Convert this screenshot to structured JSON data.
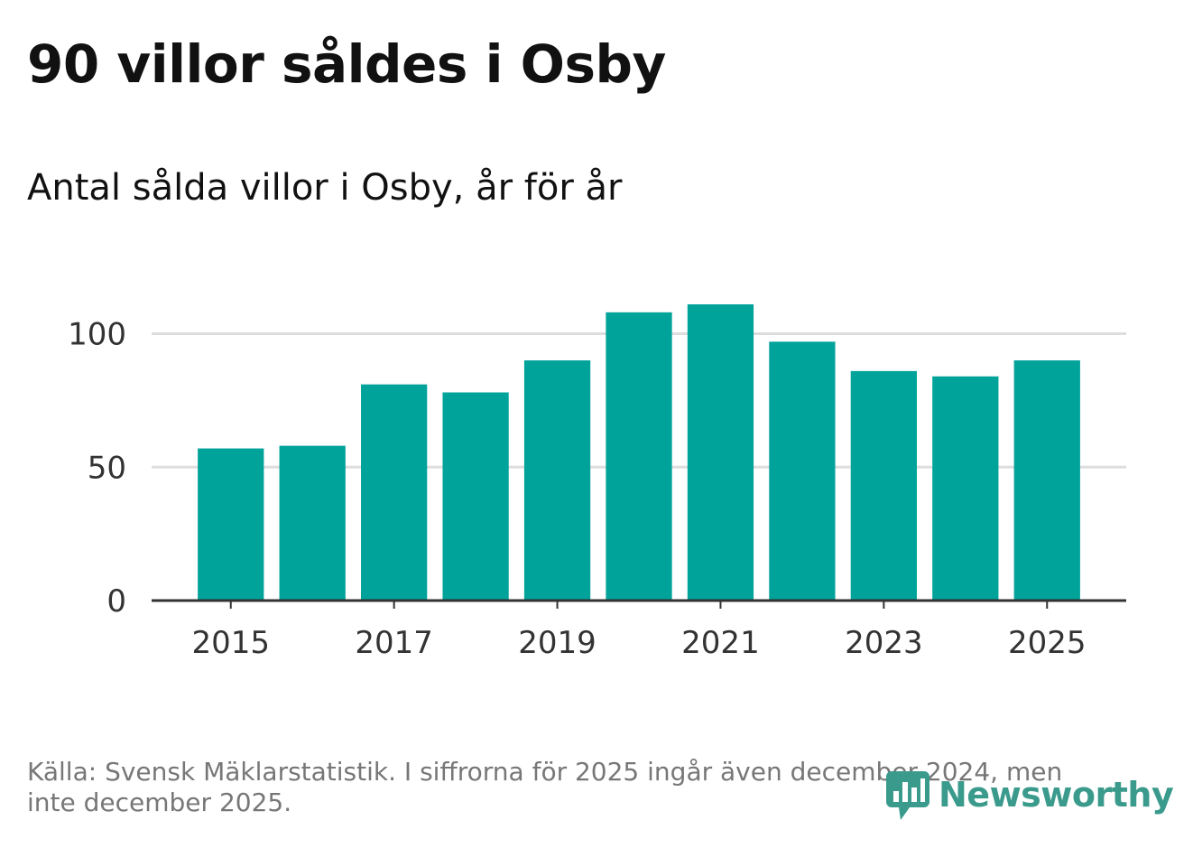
{
  "title": "90 villor såldes i Osby",
  "subtitle": "Antal sålda villor i Osby, år för år",
  "source": "Källa: Svensk Mäklarstatistik. I siffrorna för 2025 ingår även december 2024, men inte december 2025.",
  "logo": {
    "text": "Newsworthy",
    "icon": "newsworthy-logo-icon",
    "color": "#3a9a8c"
  },
  "chart_data": {
    "type": "bar",
    "title": "Antal sålda villor i Osby, år för år",
    "xlabel": "",
    "ylabel": "",
    "categories": [
      "2015",
      "2016",
      "2017",
      "2018",
      "2019",
      "2020",
      "2021",
      "2022",
      "2023",
      "2024",
      "2025"
    ],
    "values": [
      57,
      58,
      81,
      78,
      90,
      108,
      111,
      97,
      86,
      84,
      90
    ],
    "ylim": [
      0,
      111
    ],
    "yticks": [
      0,
      50,
      100
    ],
    "xtick_labels": [
      "2015",
      "2017",
      "2019",
      "2021",
      "2023",
      "2025"
    ],
    "grid": true,
    "bar_color": "#00a39a",
    "grid_color": "#dddddd",
    "axis_color": "#333333"
  }
}
